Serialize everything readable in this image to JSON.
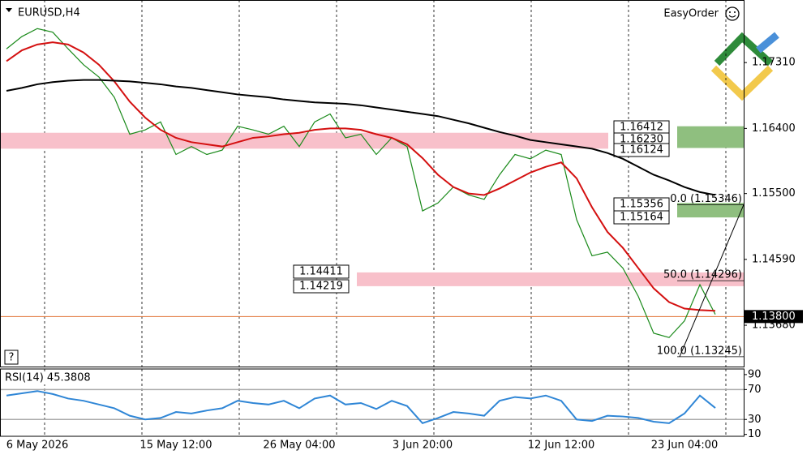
{
  "chart_data": [
    {
      "type": "line",
      "title": "EURUSD,H4",
      "toolbar_label": "EasyOrder",
      "help_button": "?",
      "categories": [
        null,
        null,
        "6 May 2026",
        null,
        null,
        null,
        null,
        null,
        null,
        null,
        null,
        "15 May 12:00",
        null,
        null,
        null,
        null,
        null,
        null,
        null,
        "26 May 04:00",
        null,
        null,
        null,
        null,
        null,
        null,
        null,
        "3 Jun 20:00",
        null,
        null,
        null,
        null,
        null,
        null,
        null,
        null,
        "12 Jun 12:00",
        null,
        null,
        null,
        null,
        null,
        null,
        null,
        "23 Jun 04:00",
        null,
        null
      ],
      "series": [
        {
          "color": "#1a8a1a",
          "values": [
            1.175,
            1.1767,
            1.1778,
            1.1773,
            1.175,
            1.1728,
            1.1711,
            1.1683,
            1.1632,
            1.1638,
            1.1649,
            1.1604,
            1.1615,
            1.1604,
            1.161,
            1.1643,
            1.1638,
            1.1632,
            1.1643,
            1.1615,
            1.1649,
            1.166,
            1.1627,
            1.1632,
            1.1604,
            1.1627,
            1.1615,
            1.1526,
            1.1537,
            1.1559,
            1.1548,
            1.1542,
            1.1576,
            1.1604,
            1.1598,
            1.161,
            1.1604,
            1.1514,
            1.1464,
            1.1469,
            1.1447,
            1.1408,
            1.1357,
            1.1351,
            1.1374,
            1.1424,
            1.1383
          ]
        },
        {
          "color": "#d41010",
          "values": [
            1.1733,
            1.1748,
            1.1756,
            1.1759,
            1.1756,
            1.1745,
            1.1728,
            1.1705,
            1.1677,
            1.1655,
            1.1638,
            1.1627,
            1.1621,
            1.1618,
            1.1615,
            1.1621,
            1.1627,
            1.1629,
            1.1632,
            1.1634,
            1.1638,
            1.164,
            1.164,
            1.1638,
            1.1632,
            1.1627,
            1.1618,
            1.1599,
            1.1576,
            1.1559,
            1.155,
            1.1548,
            1.1557,
            1.1568,
            1.1579,
            1.1587,
            1.1593,
            1.1571,
            1.1531,
            1.1497,
            1.1475,
            1.1447,
            1.1419,
            1.14,
            1.1391,
            1.1389,
            1.1388
          ]
        },
        {
          "color": "#000000",
          "values": [
            1.1692,
            1.1696,
            1.1701,
            1.1704,
            1.1706,
            1.1707,
            1.1707,
            1.1706,
            1.1705,
            1.1703,
            1.1701,
            1.1698,
            1.1696,
            1.1693,
            1.169,
            1.1687,
            1.1685,
            1.1683,
            1.168,
            1.1678,
            1.1676,
            1.1675,
            1.1674,
            1.1672,
            1.1669,
            1.1666,
            1.1663,
            1.166,
            1.1657,
            1.1652,
            1.1647,
            1.1641,
            1.1635,
            1.163,
            1.1624,
            1.1621,
            1.1618,
            1.1615,
            1.1612,
            1.1606,
            1.1598,
            1.1587,
            1.1576,
            1.1568,
            1.1559,
            1.1552,
            1.1548
          ]
        }
      ],
      "ylim": [
        1.13109,
        1.18175
      ],
      "yticks": [
        {
          "value": 1.1731,
          "label": "1.17310"
        },
        {
          "value": 1.164,
          "label": "1.16400"
        },
        {
          "value": 1.155,
          "label": "1.15500"
        },
        {
          "value": 1.1459,
          "label": "1.14590"
        },
        {
          "value": 1.1368,
          "label": "1.13680"
        }
      ],
      "zones": [
        {
          "color": "#f8c0ca",
          "range": [
            1.1612,
            1.1634
          ],
          "box_color": "#8fbf7f",
          "box_range": [
            1.1613,
            1.1643
          ],
          "labels": [
            1.16412,
            {
              "value": 1.1623,
              "label": "1.16230"
            },
            1.16124
          ]
        },
        {
          "color": "#8fbf7f",
          "range": [
            1.1517,
            1.1537
          ],
          "labels": [
            1.15356,
            1.15164
          ]
        },
        {
          "color": "#f8c0ca",
          "range": [
            1.1422,
            1.1441
          ],
          "labels": [
            1.14411,
            1.14219
          ]
        }
      ],
      "fibonacci": [
        {
          "label": "0.0 (1.15346)",
          "value": 1.15346
        },
        {
          "label": "50.0 (1.14296)",
          "value": 1.14296
        },
        {
          "label": "100.0 (1.13245)",
          "value": 1.13245
        }
      ],
      "current_price": {
        "value": 1.138,
        "label": "1.13800"
      }
    },
    {
      "type": "line",
      "title": "RSI(14) 45.3808",
      "series": [
        {
          "color": "#2f86d6",
          "values": [
            62,
            65,
            68,
            64,
            58,
            55,
            50,
            45,
            35,
            30,
            32,
            40,
            38,
            42,
            45,
            55,
            52,
            50,
            55,
            45,
            58,
            62,
            50,
            52,
            44,
            55,
            48,
            25,
            32,
            40,
            38,
            35,
            55,
            60,
            58,
            62,
            55,
            30,
            28,
            35,
            34,
            32,
            27,
            25,
            38,
            62,
            45.38
          ]
        }
      ],
      "ylim": [
        7.5,
        97.5
      ],
      "yticks": [
        90,
        70,
        30,
        10
      ],
      "levels": [
        70,
        30
      ]
    }
  ]
}
